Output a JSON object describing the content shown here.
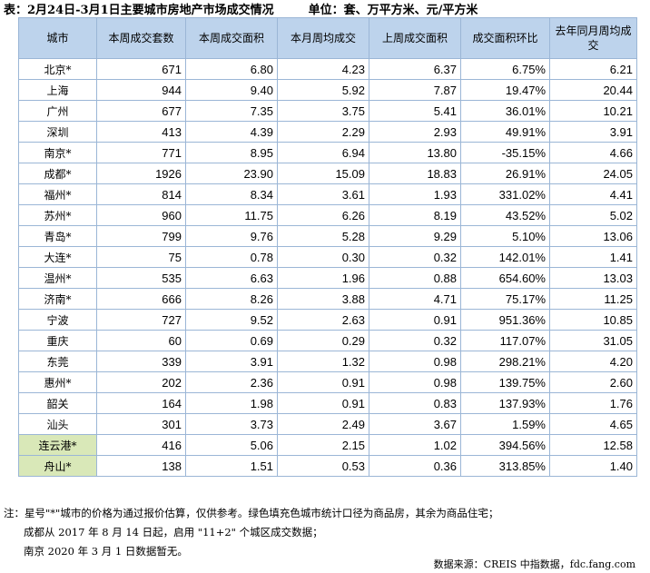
{
  "title": "表：2月24日-3月1日主要城市房地产市场成交情况",
  "unit": "单位：套、万平方米、元/平方米",
  "headers": [
    "城市",
    "本周成交套数",
    "本周成交面积",
    "本月周均成交",
    "上周成交面积",
    "成交面积环比",
    "去年同月周均成交"
  ],
  "rows": [
    {
      "city": "北京*",
      "units": "671",
      "area": "6.80",
      "month_avg": "4.23",
      "last_week": "6.37",
      "mom": "6.75%",
      "yoy": "6.21",
      "hl": false
    },
    {
      "city": "上海",
      "units": "944",
      "area": "9.40",
      "month_avg": "5.92",
      "last_week": "7.87",
      "mom": "19.47%",
      "yoy": "20.44",
      "hl": false
    },
    {
      "city": "广州",
      "units": "677",
      "area": "7.35",
      "month_avg": "3.75",
      "last_week": "5.41",
      "mom": "36.01%",
      "yoy": "10.21",
      "hl": false
    },
    {
      "city": "深圳",
      "units": "413",
      "area": "4.39",
      "month_avg": "2.29",
      "last_week": "2.93",
      "mom": "49.91%",
      "yoy": "3.91",
      "hl": false
    },
    {
      "city": "南京*",
      "units": "771",
      "area": "8.95",
      "month_avg": "6.94",
      "last_week": "13.80",
      "mom": "-35.15%",
      "yoy": "4.66",
      "hl": false
    },
    {
      "city": "成都*",
      "units": "1926",
      "area": "23.90",
      "month_avg": "15.09",
      "last_week": "18.83",
      "mom": "26.91%",
      "yoy": "24.05",
      "hl": false
    },
    {
      "city": "福州*",
      "units": "814",
      "area": "8.34",
      "month_avg": "3.61",
      "last_week": "1.93",
      "mom": "331.02%",
      "yoy": "4.41",
      "hl": false
    },
    {
      "city": "苏州*",
      "units": "960",
      "area": "11.75",
      "month_avg": "6.26",
      "last_week": "8.19",
      "mom": "43.52%",
      "yoy": "5.02",
      "hl": false
    },
    {
      "city": "青岛*",
      "units": "799",
      "area": "9.76",
      "month_avg": "5.28",
      "last_week": "9.29",
      "mom": "5.10%",
      "yoy": "13.06",
      "hl": false
    },
    {
      "city": "大连*",
      "units": "75",
      "area": "0.78",
      "month_avg": "0.30",
      "last_week": "0.32",
      "mom": "142.01%",
      "yoy": "1.41",
      "hl": false
    },
    {
      "city": "温州*",
      "units": "535",
      "area": "6.63",
      "month_avg": "1.96",
      "last_week": "0.88",
      "mom": "654.60%",
      "yoy": "13.03",
      "hl": false
    },
    {
      "city": "济南*",
      "units": "666",
      "area": "8.26",
      "month_avg": "3.88",
      "last_week": "4.71",
      "mom": "75.17%",
      "yoy": "11.25",
      "hl": false
    },
    {
      "city": "宁波",
      "units": "727",
      "area": "9.52",
      "month_avg": "2.63",
      "last_week": "0.91",
      "mom": "951.36%",
      "yoy": "10.85",
      "hl": false
    },
    {
      "city": "重庆",
      "units": "60",
      "area": "0.69",
      "month_avg": "0.29",
      "last_week": "0.32",
      "mom": "117.07%",
      "yoy": "31.05",
      "hl": false
    },
    {
      "city": "东莞",
      "units": "339",
      "area": "3.91",
      "month_avg": "1.32",
      "last_week": "0.98",
      "mom": "298.21%",
      "yoy": "4.20",
      "hl": false
    },
    {
      "city": "惠州*",
      "units": "202",
      "area": "2.36",
      "month_avg": "0.91",
      "last_week": "0.98",
      "mom": "139.75%",
      "yoy": "2.60",
      "hl": false
    },
    {
      "city": "韶关",
      "units": "164",
      "area": "1.98",
      "month_avg": "0.91",
      "last_week": "0.83",
      "mom": "137.93%",
      "yoy": "1.76",
      "hl": false
    },
    {
      "city": "汕头",
      "units": "301",
      "area": "3.73",
      "month_avg": "2.49",
      "last_week": "3.67",
      "mom": "1.59%",
      "yoy": "4.65",
      "hl": false
    },
    {
      "city": "连云港*",
      "units": "416",
      "area": "5.06",
      "month_avg": "2.15",
      "last_week": "1.02",
      "mom": "394.56%",
      "yoy": "12.58",
      "hl": true
    },
    {
      "city": "舟山*",
      "units": "138",
      "area": "1.51",
      "month_avg": "0.53",
      "last_week": "0.36",
      "mom": "313.85%",
      "yoy": "1.40",
      "hl": true
    }
  ],
  "notes": [
    "注：星号\"*\"城市的价格为通过报价估算，仅供参考。绿色填充色城市统计口径为商品房，其余为商品住宅；",
    "成都从 2017 年 8 月 14 日起，启用 \"11+2\" 个城区成交数据；",
    "南京 2020 年 3 月 1 日数据暂无。"
  ],
  "source": "数据来源：CREIS 中指数据，fdc.fang.com"
}
